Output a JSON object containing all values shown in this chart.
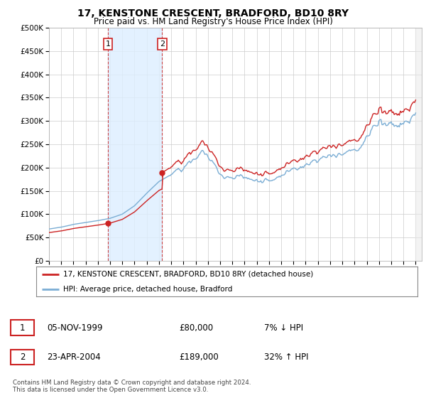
{
  "title": "17, KENSTONE CRESCENT, BRADFORD, BD10 8RY",
  "subtitle": "Price paid vs. HM Land Registry's House Price Index (HPI)",
  "ylim": [
    0,
    500000
  ],
  "yticks": [
    0,
    50000,
    100000,
    150000,
    200000,
    250000,
    300000,
    350000,
    400000,
    450000,
    500000
  ],
  "sale1_year": 1999.833,
  "sale1_price": 80000,
  "sale2_year": 2004.25,
  "sale2_price": 189000,
  "hpi_line_color": "#7aadd4",
  "price_line_color": "#cc2222",
  "shade_color": "#ddeeff",
  "dashed_color": "#cc4444",
  "annotation_box_color": "#cc2222",
  "legend_label1": "17, KENSTONE CRESCENT, BRADFORD, BD10 8RY (detached house)",
  "legend_label2": "HPI: Average price, detached house, Bradford",
  "table_row1": [
    "1",
    "05-NOV-1999",
    "£80,000",
    "7% ↓ HPI"
  ],
  "table_row2": [
    "2",
    "23-APR-2004",
    "£189,000",
    "32% ↑ HPI"
  ],
  "footnote": "Contains HM Land Registry data © Crown copyright and database right 2024.\nThis data is licensed under the Open Government Licence v3.0.",
  "background_color": "#ffffff",
  "grid_color": "#cccccc",
  "xlim_start": 1995.0,
  "xlim_end": 2025.5
}
